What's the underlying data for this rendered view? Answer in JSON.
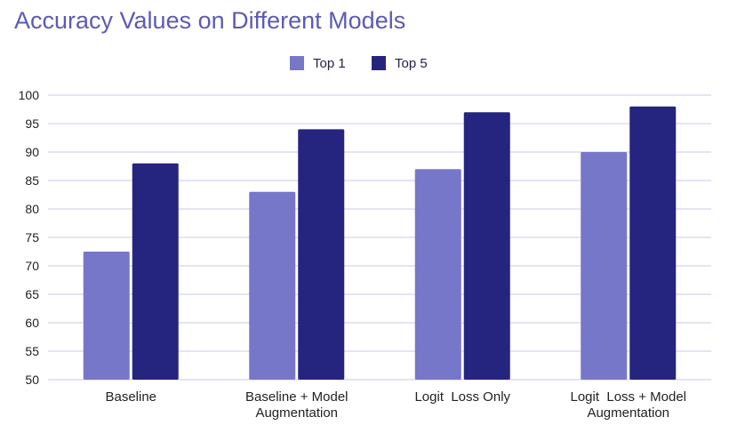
{
  "chart_data": {
    "type": "bar",
    "title": "Accuracy Values on Different Models",
    "categories": [
      "Baseline",
      "Baseline + Model Augmentation",
      "Logit  Loss Only",
      "Logit  Loss + Model Augmentation"
    ],
    "category_lines": [
      [
        "Baseline"
      ],
      [
        "Baseline + Model",
        "Augmentation"
      ],
      [
        "Logit  Loss Only"
      ],
      [
        "Logit  Loss + Model",
        "Augmentation"
      ]
    ],
    "series": [
      {
        "name": "Top 1",
        "color": "#7777c9",
        "values": [
          72.5,
          83,
          87,
          90
        ]
      },
      {
        "name": "Top 5",
        "color": "#25257f",
        "values": [
          88,
          94,
          97,
          98
        ]
      }
    ],
    "ylim": [
      50,
      100
    ],
    "yticks": [
      50,
      55,
      60,
      65,
      70,
      75,
      80,
      85,
      90,
      95,
      100
    ],
    "grid": true,
    "legend_position": "top-center",
    "title_color": "#5b5bb5",
    "grid_color": "#c8c8ec"
  }
}
